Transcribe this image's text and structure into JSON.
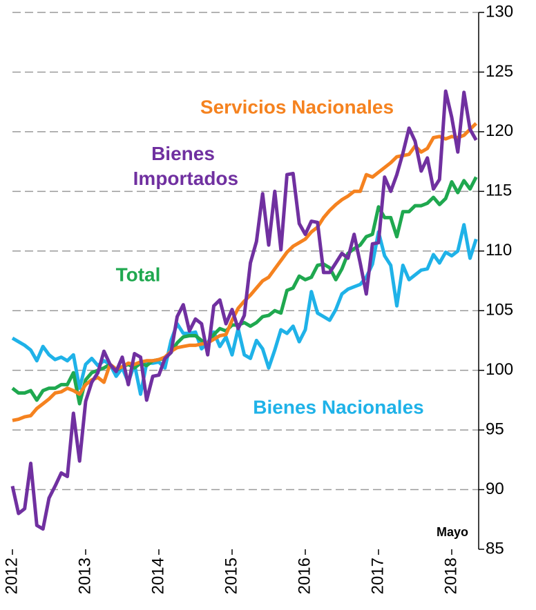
{
  "chart_data": {
    "type": "line",
    "annotation": "Mayo",
    "categories": [
      "2012",
      null,
      null,
      null,
      null,
      null,
      null,
      null,
      null,
      null,
      null,
      null,
      "2013",
      null,
      null,
      null,
      null,
      null,
      null,
      null,
      null,
      null,
      null,
      null,
      "2014",
      null,
      null,
      null,
      null,
      null,
      null,
      null,
      null,
      null,
      null,
      null,
      "2015",
      null,
      null,
      null,
      null,
      null,
      null,
      null,
      null,
      null,
      null,
      null,
      "2016",
      null,
      null,
      null,
      null,
      null,
      null,
      null,
      null,
      null,
      null,
      null,
      "2017",
      null,
      null,
      null,
      null,
      null,
      null,
      null,
      null,
      null,
      null,
      null,
      "2018",
      null,
      null,
      null,
      null
    ],
    "ylim": [
      85,
      130
    ],
    "yticks": [
      85,
      90,
      95,
      100,
      105,
      110,
      115,
      120,
      125,
      130
    ],
    "grid": true,
    "series": [
      {
        "name": "Bienes Nacionales",
        "color": "#1fb2e8",
        "values": [
          102.7,
          102.4,
          102.1,
          101.7,
          100.8,
          102.0,
          101.3,
          100.9,
          101.1,
          100.8,
          101.3,
          98.5,
          100.5,
          101.0,
          100.4,
          100.8,
          100.5,
          99.5,
          100.2,
          99.0,
          100.5,
          98.0,
          100.6,
          100.6,
          100.7,
          100.2,
          102.5,
          103.9,
          103.1,
          103.1,
          103.2,
          101.8,
          102.3,
          103.2,
          102.0,
          102.8,
          101.3,
          103.5,
          101.3,
          101.0,
          102.5,
          101.8,
          100.2,
          101.7,
          103.4,
          103.1,
          103.7,
          102.4,
          103.4,
          106.6,
          104.8,
          104.5,
          104.2,
          105.1,
          106.4,
          106.8,
          107.0,
          107.2,
          107.8,
          108.9,
          111.6,
          109.6,
          108.8,
          105.4,
          108.8,
          107.6,
          108.0,
          108.4,
          108.5,
          109.7,
          109.0,
          109.9,
          109.6,
          110.0,
          112.2,
          109.4,
          111.0
        ]
      },
      {
        "name": "Total",
        "color": "#1fa84f",
        "values": [
          98.5,
          98.1,
          98.1,
          98.3,
          97.5,
          98.3,
          98.5,
          98.5,
          98.8,
          98.8,
          99.8,
          97.2,
          99.2,
          99.8,
          100.0,
          100.2,
          100.5,
          100.0,
          100.3,
          100.5,
          100.2,
          100.6,
          100.4,
          100.8,
          100.9,
          101.0,
          101.5,
          102.3,
          102.8,
          102.9,
          102.9,
          102.5,
          102.2,
          103.0,
          103.5,
          103.3,
          103.8,
          103.8,
          104.0,
          103.7,
          104.0,
          104.5,
          104.6,
          105.0,
          104.8,
          106.7,
          106.9,
          107.9,
          107.6,
          107.8,
          108.8,
          108.9,
          108.6,
          107.6,
          108.5,
          109.8,
          110.2,
          110.5,
          111.2,
          111.4,
          113.7,
          112.8,
          112.8,
          111.2,
          113.3,
          113.3,
          113.8,
          113.8,
          114.0,
          114.5,
          113.9,
          114.4,
          115.8,
          114.9,
          115.9,
          115.2,
          116.2
        ]
      },
      {
        "name": "Servicios Nacionales",
        "color": "#f5821f",
        "values": [
          95.8,
          95.9,
          96.1,
          96.2,
          96.8,
          97.2,
          97.6,
          98.1,
          98.2,
          98.5,
          98.3,
          98.0,
          98.8,
          99.2,
          99.4,
          99.0,
          100.5,
          100.1,
          100.3,
          100.6,
          100.5,
          100.7,
          100.8,
          100.8,
          100.9,
          101.1,
          101.6,
          101.9,
          102.0,
          102.1,
          102.1,
          102.2,
          102.3,
          102.6,
          102.9,
          103.0,
          104.2,
          105.2,
          105.8,
          106.3,
          106.9,
          107.5,
          107.8,
          108.5,
          109.2,
          109.9,
          110.4,
          110.7,
          111.0,
          111.6,
          112.0,
          112.8,
          113.4,
          113.9,
          114.3,
          114.6,
          115.0,
          115.0,
          116.4,
          116.2,
          116.6,
          117.0,
          117.4,
          117.9,
          118.0,
          118.1,
          118.8,
          118.3,
          118.6,
          119.5,
          119.6,
          119.4,
          119.6,
          119.5,
          119.7,
          120.2,
          120.7
        ]
      },
      {
        "name": "Bienes Importados",
        "color": "#7030a0",
        "values": [
          90.3,
          88.0,
          88.4,
          92.2,
          87.0,
          86.7,
          89.3,
          90.3,
          91.4,
          91.1,
          96.4,
          92.4,
          97.4,
          99.0,
          99.8,
          101.6,
          100.5,
          99.9,
          101.1,
          98.8,
          101.4,
          101.1,
          97.5,
          99.5,
          99.6,
          101.0,
          101.5,
          104.5,
          105.5,
          103.3,
          104.3,
          103.9,
          101.3,
          105.4,
          105.9,
          103.9,
          105.1,
          103.5,
          104.6,
          109.0,
          110.8,
          114.8,
          110.5,
          115.0,
          110.1,
          116.4,
          116.5,
          112.3,
          111.4,
          112.5,
          112.4,
          108.2,
          108.2,
          109.0,
          109.8,
          109.4,
          111.4,
          109.0,
          106.4,
          110.6,
          110.7,
          116.2,
          115.0,
          116.4,
          118.2,
          120.3,
          119.2,
          116.7,
          117.8,
          115.2,
          116.0,
          123.4,
          121.2,
          118.3,
          123.3,
          120.2,
          119.3
        ]
      }
    ]
  }
}
